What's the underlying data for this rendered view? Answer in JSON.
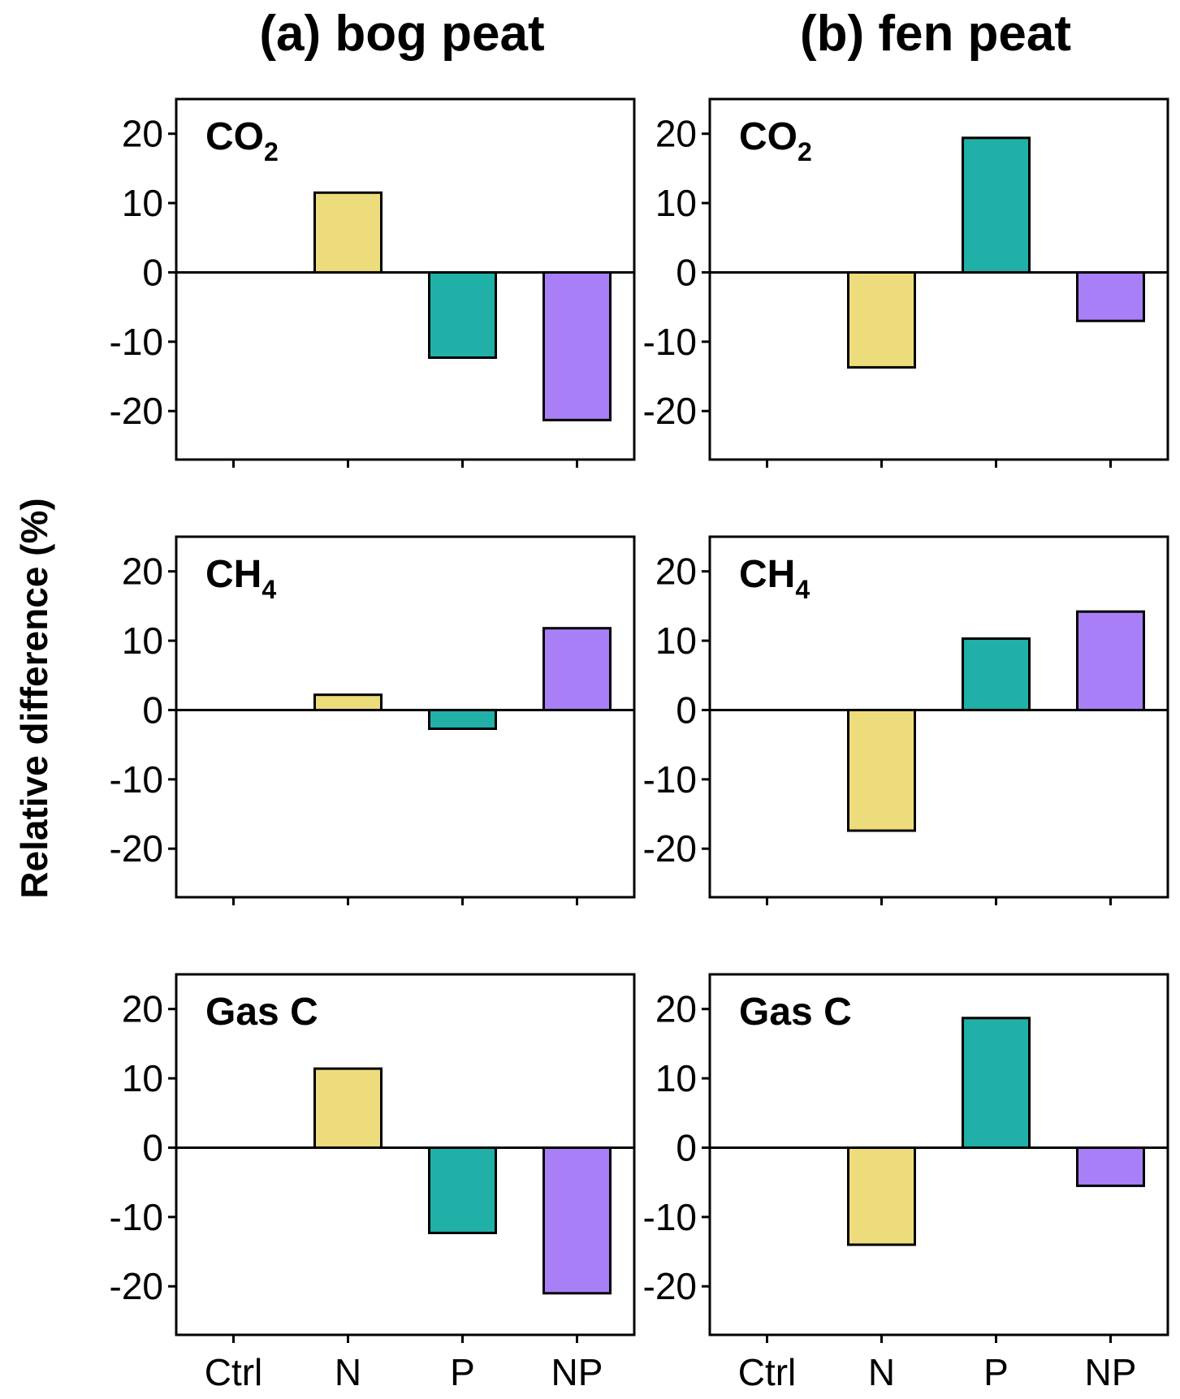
{
  "column_titles": [
    "(a) bog peat",
    "(b) fen peat"
  ],
  "y_axis_label": "Relative difference (%)",
  "row_labels": [
    {
      "main": "CO",
      "sub": "2"
    },
    {
      "main": "CH",
      "sub": "4"
    },
    {
      "main": "Gas C",
      "sub": ""
    }
  ],
  "chart_data": [
    {
      "type": "bar",
      "column": "(a) bog peat",
      "panel": "CO2",
      "categories": [
        "Ctrl",
        "N",
        "P",
        "NP"
      ],
      "values": [
        0,
        11.5,
        -12.3,
        -21.3
      ],
      "ylim": [
        -27,
        25
      ],
      "yticks": [
        -20,
        -10,
        0,
        10,
        20
      ]
    },
    {
      "type": "bar",
      "column": "(b) fen peat",
      "panel": "CO2",
      "categories": [
        "Ctrl",
        "N",
        "P",
        "NP"
      ],
      "values": [
        0,
        -13.7,
        19.4,
        -7.0
      ],
      "ylim": [
        -27,
        25
      ],
      "yticks": [
        -20,
        -10,
        0,
        10,
        20
      ]
    },
    {
      "type": "bar",
      "column": "(a) bog peat",
      "panel": "CH4",
      "categories": [
        "Ctrl",
        "N",
        "P",
        "NP"
      ],
      "values": [
        0,
        2.2,
        -2.7,
        11.8
      ],
      "ylim": [
        -27,
        25
      ],
      "yticks": [
        -20,
        -10,
        0,
        10,
        20
      ]
    },
    {
      "type": "bar",
      "column": "(b) fen peat",
      "panel": "CH4",
      "categories": [
        "Ctrl",
        "N",
        "P",
        "NP"
      ],
      "values": [
        0,
        -17.4,
        10.3,
        14.2
      ],
      "ylim": [
        -27,
        25
      ],
      "yticks": [
        -20,
        -10,
        0,
        10,
        20
      ]
    },
    {
      "type": "bar",
      "column": "(a) bog peat",
      "panel": "Gas C",
      "categories": [
        "Ctrl",
        "N",
        "P",
        "NP"
      ],
      "values": [
        0,
        11.4,
        -12.3,
        -21.0
      ],
      "ylim": [
        -27,
        25
      ],
      "yticks": [
        -20,
        -10,
        0,
        10,
        20
      ]
    },
    {
      "type": "bar",
      "column": "(b) fen peat",
      "panel": "Gas C",
      "categories": [
        "Ctrl",
        "N",
        "P",
        "NP"
      ],
      "values": [
        0,
        -14.0,
        18.7,
        -5.5
      ],
      "ylim": [
        -27,
        25
      ],
      "yticks": [
        -20,
        -10,
        0,
        10,
        20
      ]
    }
  ],
  "colors": {
    "Ctrl": "#ffffff",
    "N": "#EDDC7C",
    "P": "#20B0A8",
    "NP": "#A97FF7",
    "stroke": "#000000"
  }
}
